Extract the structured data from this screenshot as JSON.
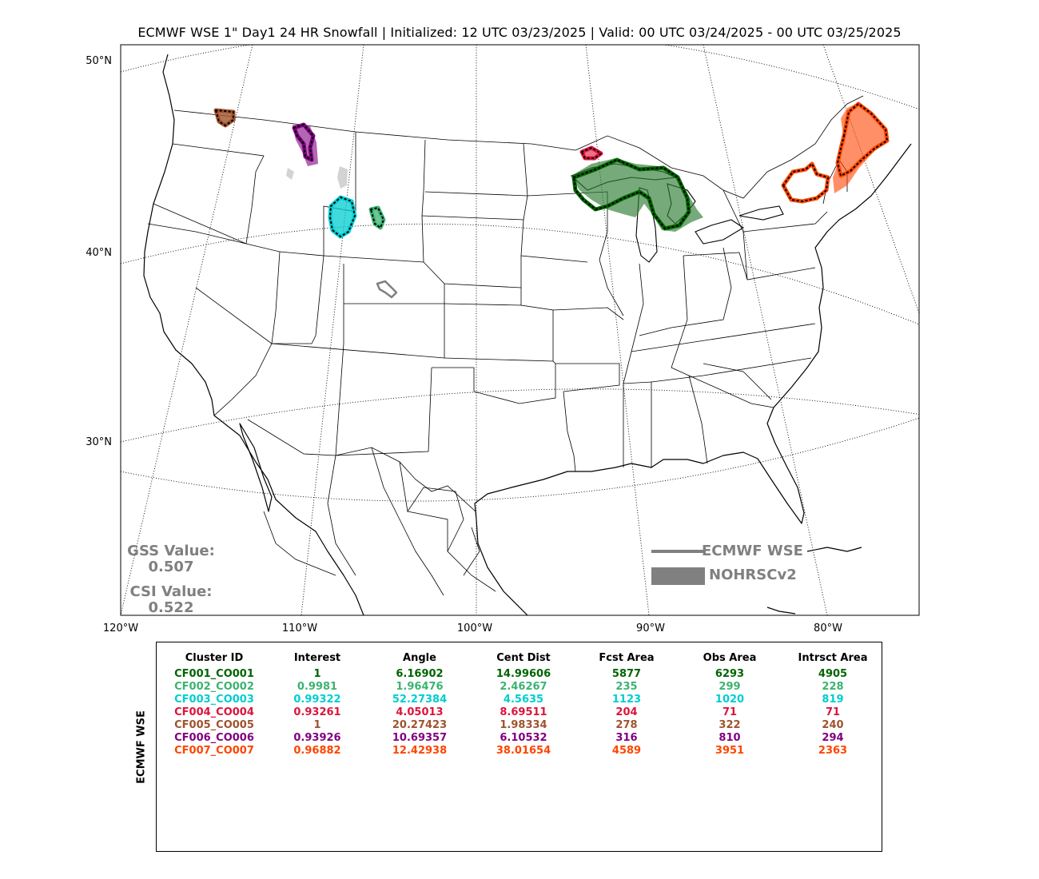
{
  "title": "ECMWF WSE 1\" Day1 24 HR Snowfall | Initialized: 12 UTC 03/23/2025 | Valid: 00 UTC 03/24/2025 - 00 UTC 03/25/2025",
  "map": {
    "lat_labels": [
      "50°N",
      "40°N",
      "30°N"
    ],
    "lon_labels": [
      "120°W",
      "110°W",
      "100°W",
      "90°W",
      "80°W"
    ]
  },
  "scores": {
    "gss_label": "GSS Value:",
    "gss_value": "0.507",
    "csi_label": "CSI Value:",
    "csi_value": "0.522"
  },
  "legend": {
    "line_label": "ECMWF WSE",
    "fill_label": "NOHRSCv2",
    "color": "#808080"
  },
  "table": {
    "ylabel": "ECMWF WSE",
    "headers": [
      "Cluster ID",
      "Interest",
      "Angle",
      "Cent Dist",
      "Fcst Area",
      "Obs Area",
      "Intrsct Area"
    ],
    "rows": [
      {
        "color": "#006400",
        "cells": [
          "CF001_CO001",
          "1",
          "6.16902",
          "14.99606",
          "5877",
          "6293",
          "4905"
        ]
      },
      {
        "color": "#3cb371",
        "cells": [
          "CF002_CO002",
          "0.9981",
          "1.96476",
          "2.46267",
          "235",
          "299",
          "228"
        ]
      },
      {
        "color": "#00ced1",
        "cells": [
          "CF003_CO003",
          "0.99322",
          "52.27384",
          "4.5635",
          "1123",
          "1020",
          "819"
        ]
      },
      {
        "color": "#dc143c",
        "cells": [
          "CF004_CO004",
          "0.93261",
          "4.05013",
          "8.69511",
          "204",
          "71",
          "71"
        ]
      },
      {
        "color": "#a0522d",
        "cells": [
          "CF005_CO005",
          "1",
          "20.27423",
          "1.98334",
          "278",
          "322",
          "240"
        ]
      },
      {
        "color": "#800080",
        "cells": [
          "CF006_CO006",
          "0.93926",
          "10.69357",
          "6.10532",
          "316",
          "810",
          "294"
        ]
      },
      {
        "color": "#ff4500",
        "cells": [
          "CF007_CO007",
          "0.96882",
          "12.42938",
          "38.01654",
          "4589",
          "3951",
          "2363"
        ]
      }
    ]
  },
  "clusters": [
    {
      "id": "CF001_CO001",
      "color": "#006400",
      "fill": "#2e7d32",
      "region": "upper-midwest"
    },
    {
      "id": "CF002_CO002",
      "color": "#3cb371",
      "fill": "#3cb371",
      "region": "wyoming-east"
    },
    {
      "id": "CF003_CO003",
      "color": "#00ced1",
      "fill": "#00ced1",
      "region": "wyoming-west"
    },
    {
      "id": "CF004_CO004",
      "color": "#dc143c",
      "fill": "#dc143c",
      "region": "lake-superior-north"
    },
    {
      "id": "CF005_CO005",
      "color": "#a0522d",
      "fill": "#a0522d",
      "region": "washington"
    },
    {
      "id": "CF006_CO006",
      "color": "#800080",
      "fill": "#800080",
      "region": "idaho-montana"
    },
    {
      "id": "CF007_CO007",
      "color": "#ff4500",
      "fill": "#ff4500",
      "region": "new-york-new-england"
    }
  ]
}
